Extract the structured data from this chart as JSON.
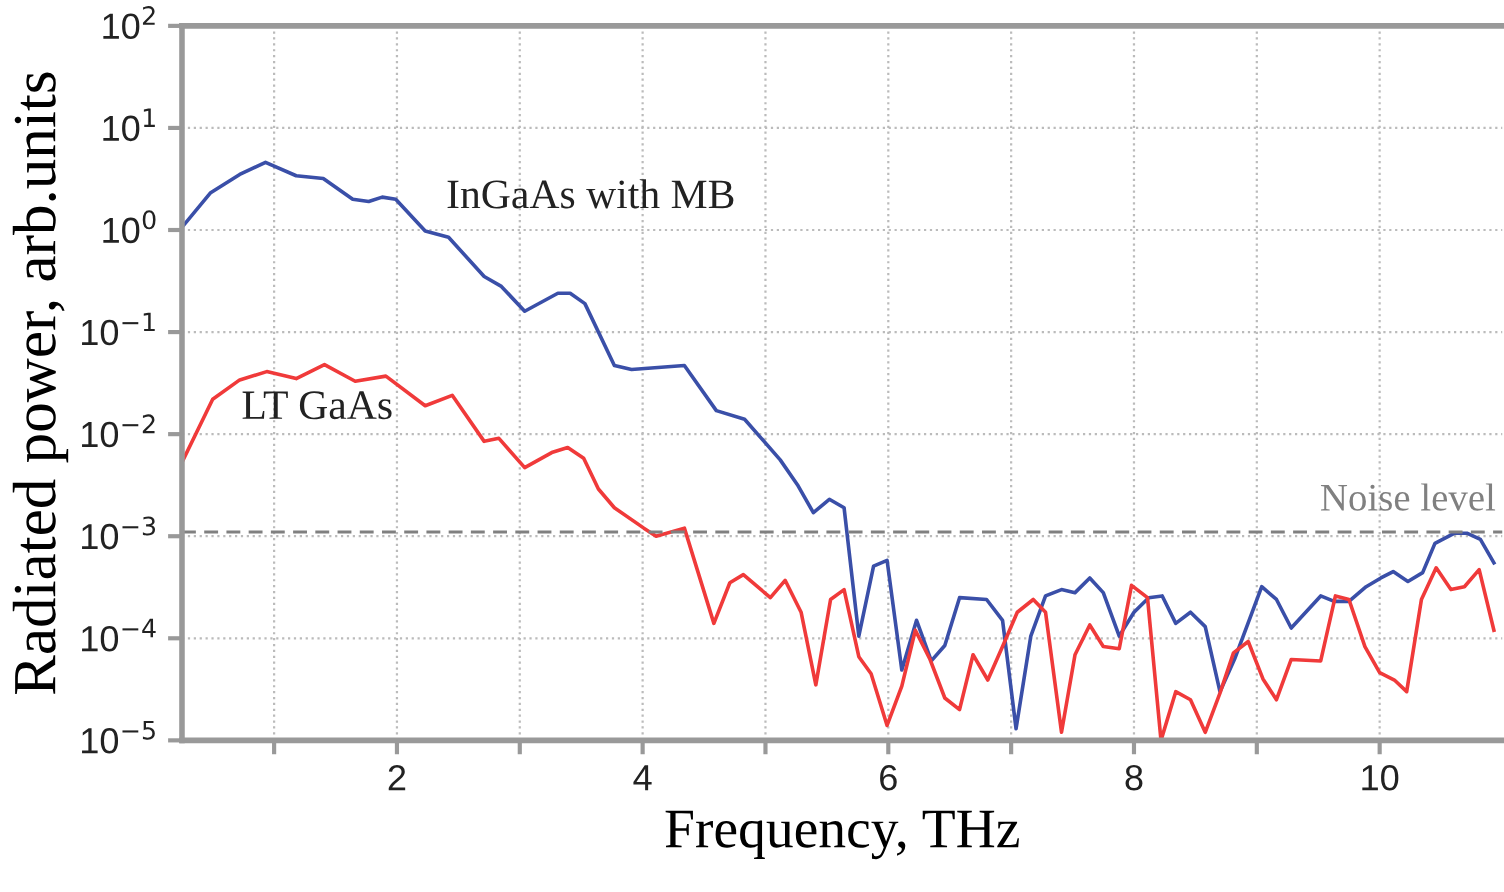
{
  "chart_data": {
    "type": "line",
    "xlabel": "Frequency, THz",
    "ylabel": "Radiated power, arb.units",
    "log": "y",
    "grid": true,
    "legend": false,
    "marker": "none",
    "line_style": "solid",
    "xlim": [
      0.25,
      11
    ],
    "ylim": [
      1e-05,
      100
    ],
    "xticks": [
      {
        "value": 1,
        "label": null
      },
      2,
      {
        "value": 3,
        "label": null
      },
      4,
      {
        "value": 5,
        "label": null
      },
      6,
      {
        "value": 7,
        "label": null
      },
      8,
      {
        "value": 9,
        "label": null
      },
      10
    ],
    "yticks": [
      {
        "value": 1e-05,
        "label": "10$^{−5}$"
      },
      {
        "value": 0.0001,
        "label": "10$^{−4}$"
      },
      {
        "value": 0.001,
        "label": "10$^{−3}$"
      },
      {
        "value": 0.01,
        "label": "10$^{−2}$"
      },
      {
        "value": 0.1,
        "label": "10$^{−1}$"
      },
      {
        "value": 1,
        "label": "10$^{0}$"
      },
      {
        "value": 10,
        "label": "10$^{1}$"
      },
      {
        "value": 100,
        "label": "10$^{2}$"
      }
    ],
    "ref_lines": [
      {
        "axis": "y",
        "value": 0.0011,
        "label": "Noise level",
        "color": "#808080",
        "line_style": "dashed"
      }
    ],
    "series": [
      {
        "name": "InGaAs with MB",
        "color": "#3a4fa8",
        "x": [
          0.26,
          0.48,
          0.72,
          0.93,
          1.18,
          1.4,
          1.64,
          1.77,
          1.88,
          1.99,
          2.23,
          2.42,
          2.71,
          2.85,
          3.04,
          3.31,
          3.41,
          3.53,
          3.77,
          3.91,
          4.34,
          4.6,
          4.83,
          5.12,
          5.26,
          5.39,
          5.52,
          5.64,
          5.76,
          5.88,
          5.99,
          6.11,
          6.23,
          6.35,
          6.46,
          6.58,
          6.8,
          6.93,
          7.04,
          7.16,
          7.28,
          7.41,
          7.52,
          7.64,
          7.75,
          7.88,
          8.0,
          8.12,
          8.23,
          8.34,
          8.46,
          8.58,
          8.7,
          8.82,
          9.04,
          9.16,
          9.28,
          9.52,
          9.63,
          9.75,
          9.89,
          10.01,
          10.11,
          10.23,
          10.35,
          10.45,
          10.61,
          10.71,
          10.82,
          10.93
        ],
        "values": [
          1.1,
          2.3,
          3.5,
          4.6,
          3.4,
          3.2,
          2.0,
          1.9,
          2.1,
          2.0,
          0.98,
          0.85,
          0.35,
          0.28,
          0.16,
          0.24,
          0.24,
          0.19,
          0.047,
          0.043,
          0.047,
          0.017,
          0.014,
          0.0056,
          0.0032,
          0.0017,
          0.0023,
          0.0019,
          0.000105,
          0.00051,
          0.00058,
          4.9e-05,
          0.00015,
          6e-05,
          8.5e-05,
          0.00025,
          0.00024,
          0.00015,
          1.3e-05,
          0.000105,
          0.00026,
          0.0003,
          0.00028,
          0.00039,
          0.00028,
          0.000105,
          0.00018,
          0.00025,
          0.00026,
          0.00014,
          0.00018,
          0.00013,
          3e-05,
          6.3e-05,
          0.00032,
          0.00024,
          0.000126,
          0.00026,
          0.00023,
          0.00023,
          0.00032,
          0.00039,
          0.00045,
          0.00036,
          0.00044,
          0.00085,
          0.00107,
          0.00107,
          0.00093,
          0.00055
        ]
      },
      {
        "name": "LT GaAs",
        "color": "#f03a3a",
        "x": [
          0.26,
          0.5,
          0.72,
          0.94,
          1.18,
          1.41,
          1.66,
          1.91,
          2.23,
          2.45,
          2.71,
          2.83,
          3.04,
          3.26,
          3.39,
          3.52,
          3.64,
          3.77,
          4.01,
          4.11,
          4.34,
          4.58,
          4.71,
          4.82,
          5.04,
          5.16,
          5.29,
          5.41,
          5.53,
          5.64,
          5.76,
          5.86,
          5.99,
          6.11,
          6.22,
          6.34,
          6.46,
          6.58,
          6.69,
          6.81,
          6.93,
          7.05,
          7.18,
          7.28,
          7.41,
          7.52,
          7.64,
          7.75,
          7.88,
          7.98,
          8.11,
          8.22,
          8.34,
          8.46,
          8.58,
          8.7,
          8.81,
          8.93,
          9.05,
          9.16,
          9.28,
          9.52,
          9.64,
          9.75,
          9.88,
          10.0,
          10.12,
          10.22,
          10.34,
          10.46,
          10.58,
          10.69,
          10.81,
          10.93
        ],
        "values": [
          0.0056,
          0.022,
          0.034,
          0.041,
          0.035,
          0.048,
          0.033,
          0.037,
          0.019,
          0.024,
          0.0085,
          0.0091,
          0.0047,
          0.0066,
          0.0074,
          0.0058,
          0.0029,
          0.0019,
          0.0012,
          0.001,
          0.0012,
          0.00014,
          0.00035,
          0.00042,
          0.00025,
          0.00037,
          0.00018,
          3.5e-05,
          0.00024,
          0.0003,
          6.6e-05,
          4.5e-05,
          1.4e-05,
          3.4e-05,
          0.00012,
          6.2e-05,
          2.6e-05,
          2e-05,
          6.9e-05,
          3.9e-05,
          8.3e-05,
          0.00018,
          0.00024,
          0.00018,
          1.2e-05,
          6.9e-05,
          0.000135,
          8.3e-05,
          7.9e-05,
          0.00033,
          0.00025,
          1e-05,
          3e-05,
          2.5e-05,
          1.2e-05,
          2.9e-05,
          7.2e-05,
          9.3e-05,
          4e-05,
          2.5e-05,
          6.2e-05,
          6e-05,
          0.00026,
          0.00024,
          8.3e-05,
          4.6e-05,
          3.9e-05,
          3e-05,
          0.00024,
          0.00049,
          0.0003,
          0.00032,
          0.00047,
          0.00012
        ]
      }
    ]
  }
}
